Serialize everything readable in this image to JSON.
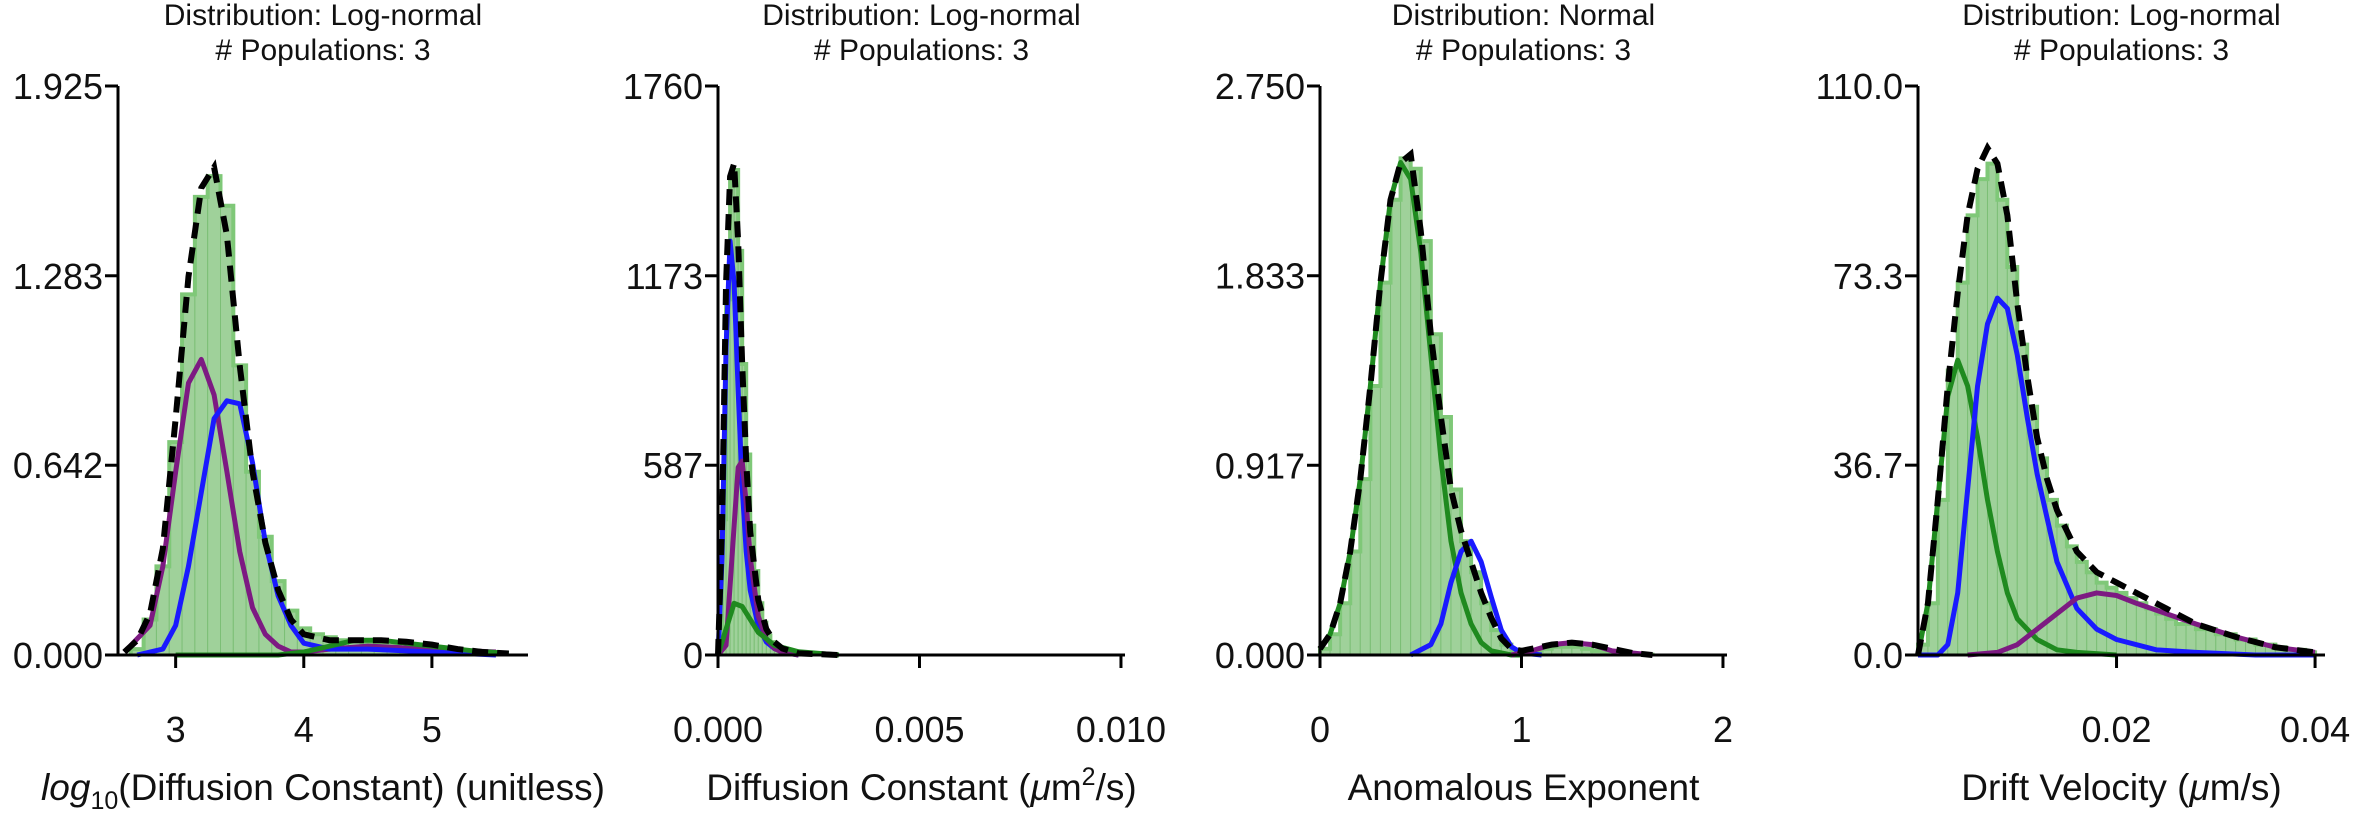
{
  "colors": {
    "histogram_fill": "#9fd19a",
    "histogram_edge": "#7fc878",
    "component_green": "#1f8a1f",
    "component_blue": "#1a1aff",
    "component_purple": "#7d1a82",
    "total_fit": "#000000"
  },
  "chart_data": [
    {
      "type": "bar",
      "title": "",
      "subtitle_lines": [
        "Distribution: Log-normal",
        "# Populations: 3"
      ],
      "xlabel_parts": [
        "log",
        "10",
        "(Diffusion Constant) (unitless)"
      ],
      "ylabel": "",
      "xlim": [
        2.55,
        5.75
      ],
      "ylim": [
        0,
        1.925
      ],
      "xticks": [
        3,
        4,
        5
      ],
      "xtick_labels": [
        "3",
        "4",
        "5"
      ],
      "yticks": [
        0,
        0.642,
        1.283,
        1.925
      ],
      "ytick_labels": [
        "0.000",
        "0.642",
        "1.283",
        "1.925"
      ],
      "grid": false,
      "bin_width": 0.1,
      "histogram": {
        "x": [
          2.7,
          2.8,
          2.9,
          3.0,
          3.1,
          3.2,
          3.3,
          3.4,
          3.5,
          3.6,
          3.7,
          3.8,
          3.9,
          4.0,
          4.1,
          4.2,
          4.3,
          4.4,
          4.5,
          4.6,
          4.7,
          4.8,
          4.9,
          5.0,
          5.1,
          5.2,
          5.3,
          5.4,
          5.5
        ],
        "values": [
          0.02,
          0.12,
          0.3,
          0.72,
          1.22,
          1.55,
          1.62,
          1.52,
          0.98,
          0.62,
          0.4,
          0.25,
          0.15,
          0.09,
          0.07,
          0.06,
          0.05,
          0.05,
          0.04,
          0.035,
          0.03,
          0.025,
          0.02,
          0.02,
          0.015,
          0.01,
          0.01,
          0.01,
          0.005
        ]
      },
      "series": [
        {
          "name": "",
          "color": "#7d1a82",
          "x": [
            2.6,
            2.8,
            2.9,
            3.0,
            3.1,
            3.2,
            3.3,
            3.4,
            3.5,
            3.6,
            3.7,
            3.8,
            3.9,
            4.0,
            4.2,
            4.5,
            5.0,
            5.5
          ],
          "values": [
            0.01,
            0.1,
            0.3,
            0.62,
            0.92,
            1.0,
            0.88,
            0.62,
            0.35,
            0.16,
            0.07,
            0.03,
            0.01,
            0.01,
            0.02,
            0.03,
            0.02,
            0.01
          ]
        },
        {
          "name": "",
          "color": "#1a1aff",
          "x": [
            2.7,
            2.9,
            3.0,
            3.1,
            3.2,
            3.3,
            3.4,
            3.5,
            3.6,
            3.7,
            3.8,
            3.9,
            4.0,
            4.2,
            4.5,
            5.0,
            5.5
          ],
          "values": [
            0.0,
            0.02,
            0.1,
            0.3,
            0.55,
            0.8,
            0.86,
            0.85,
            0.65,
            0.38,
            0.2,
            0.1,
            0.04,
            0.02,
            0.02,
            0.01,
            0.0
          ]
        },
        {
          "name": "",
          "color": "#1f8a1f",
          "x": [
            3.0,
            3.4,
            3.8,
            4.0,
            4.2,
            4.4,
            4.6,
            4.8,
            5.0,
            5.3,
            5.6
          ],
          "values": [
            0.0,
            0.0,
            0.0,
            0.01,
            0.03,
            0.05,
            0.05,
            0.04,
            0.03,
            0.015,
            0.005
          ]
        },
        {
          "name": "",
          "color": "#000000",
          "dashed": true,
          "x": [
            2.6,
            2.7,
            2.8,
            2.9,
            3.0,
            3.1,
            3.2,
            3.3,
            3.4,
            3.5,
            3.6,
            3.7,
            3.8,
            3.9,
            4.0,
            4.1,
            4.2,
            4.4,
            4.6,
            4.8,
            5.0,
            5.2,
            5.4,
            5.6
          ],
          "values": [
            0.01,
            0.05,
            0.14,
            0.36,
            0.8,
            1.28,
            1.58,
            1.65,
            1.42,
            0.98,
            0.62,
            0.38,
            0.22,
            0.12,
            0.07,
            0.06,
            0.05,
            0.05,
            0.05,
            0.045,
            0.035,
            0.02,
            0.01,
            0.005
          ]
        }
      ]
    },
    {
      "type": "bar",
      "title": "",
      "subtitle_lines": [
        "Distribution: Log-normal",
        "# Populations: 3"
      ],
      "xlabel_parts": [
        "Diffusion Constant (",
        "μ",
        "m",
        "2",
        "/s)"
      ],
      "ylabel": "",
      "xlim": [
        0,
        0.0101
      ],
      "ylim": [
        0,
        1760
      ],
      "xticks": [
        0,
        0.005,
        0.01
      ],
      "xtick_labels": [
        "0.000",
        "0.005",
        "0.010"
      ],
      "yticks": [
        0,
        587,
        1173,
        1760
      ],
      "ytick_labels": [
        "0",
        "587",
        "1173",
        "1760"
      ],
      "grid": false,
      "bin_width": 0.0001,
      "histogram": {
        "x": [
          5e-05,
          0.00015,
          0.00025,
          0.00035,
          0.00045,
          0.00055,
          0.00065,
          0.00075,
          0.00085,
          0.00095,
          0.00105,
          0.00115,
          0.00125,
          0.00135,
          0.00145,
          0.00155,
          0.00165,
          0.00175,
          0.00185,
          0.00195
        ],
        "values": [
          40,
          420,
          1100,
          1480,
          1500,
          1250,
          900,
          620,
          400,
          260,
          160,
          100,
          60,
          40,
          25,
          15,
          10,
          6,
          4,
          2
        ]
      },
      "series": [
        {
          "name": "",
          "color": "#1a1aff",
          "x": [
            0.0,
            0.0001,
            0.0002,
            0.0003,
            0.0004,
            0.0005,
            0.0006,
            0.0007,
            0.0008,
            0.001,
            0.0012,
            0.0014,
            0.0016,
            0.002
          ],
          "values": [
            0,
            300,
            950,
            1280,
            1150,
            820,
            520,
            320,
            200,
            90,
            40,
            20,
            10,
            0
          ]
        },
        {
          "name": "",
          "color": "#7d1a82",
          "x": [
            0.0,
            0.0002,
            0.0004,
            0.0005,
            0.0006,
            0.0007,
            0.0008,
            0.001,
            0.0012,
            0.0014,
            0.0016,
            0.002
          ],
          "values": [
            0,
            30,
            400,
            580,
            600,
            470,
            300,
            120,
            50,
            20,
            8,
            0
          ]
        },
        {
          "name": "",
          "color": "#1f8a1f",
          "x": [
            0.0,
            0.0002,
            0.0004,
            0.0006,
            0.0008,
            0.001,
            0.0014,
            0.002,
            0.003
          ],
          "values": [
            0,
            80,
            160,
            150,
            110,
            70,
            30,
            10,
            0
          ]
        },
        {
          "name": "",
          "color": "#000000",
          "dashed": true,
          "x": [
            0.0,
            0.0001,
            0.0002,
            0.0003,
            0.0004,
            0.0005,
            0.0006,
            0.0007,
            0.0008,
            0.001,
            0.0012,
            0.0014,
            0.0016,
            0.002,
            0.003
          ],
          "values": [
            0,
            400,
            1150,
            1480,
            1520,
            1280,
            900,
            600,
            380,
            170,
            80,
            40,
            20,
            5,
            0
          ]
        }
      ]
    },
    {
      "type": "bar",
      "title": "",
      "subtitle_lines": [
        "Distribution: Normal",
        "# Populations: 3"
      ],
      "xlabel_parts": [
        "Anomalous Exponent"
      ],
      "ylabel": "",
      "xlim": [
        0,
        2.02
      ],
      "ylim": [
        0,
        2.75
      ],
      "xticks": [
        0,
        1,
        2
      ],
      "xtick_labels": [
        "0",
        "1",
        "2"
      ],
      "yticks": [
        0,
        0.917,
        1.833,
        2.75
      ],
      "ytick_labels": [
        "0.000",
        "0.917",
        "1.833",
        "2.750"
      ],
      "grid": false,
      "bin_width": 0.05,
      "histogram": {
        "x": [
          0.025,
          0.075,
          0.125,
          0.175,
          0.225,
          0.275,
          0.325,
          0.375,
          0.425,
          0.475,
          0.525,
          0.575,
          0.625,
          0.675,
          0.725,
          0.775,
          0.825,
          0.875,
          0.925,
          0.975,
          1.025,
          1.075,
          1.125,
          1.175,
          1.225,
          1.275,
          1.325,
          1.375,
          1.425,
          1.475,
          1.525,
          1.575,
          1.625
        ],
        "values": [
          0.03,
          0.1,
          0.25,
          0.5,
          0.85,
          1.3,
          1.8,
          2.2,
          2.4,
          2.35,
          2.0,
          1.55,
          1.15,
          0.8,
          0.55,
          0.4,
          0.25,
          0.12,
          0.05,
          0.02,
          0.01,
          0.02,
          0.03,
          0.04,
          0.04,
          0.04,
          0.03,
          0.02,
          0.015,
          0.01,
          0.005,
          0.004,
          0.002
        ]
      },
      "series": [
        {
          "name": "",
          "color": "#1f8a1f",
          "x": [
            0.0,
            0.05,
            0.1,
            0.15,
            0.2,
            0.25,
            0.3,
            0.35,
            0.4,
            0.45,
            0.5,
            0.55,
            0.6,
            0.65,
            0.7,
            0.75,
            0.8,
            0.85,
            0.9,
            0.95,
            1.0
          ],
          "values": [
            0.03,
            0.1,
            0.25,
            0.5,
            0.85,
            1.3,
            1.8,
            2.2,
            2.38,
            2.3,
            1.95,
            1.45,
            0.95,
            0.55,
            0.3,
            0.15,
            0.06,
            0.02,
            0.01,
            0.0,
            0.0
          ]
        },
        {
          "name": "",
          "color": "#1a1aff",
          "x": [
            0.45,
            0.55,
            0.6,
            0.65,
            0.7,
            0.75,
            0.8,
            0.85,
            0.9,
            0.95,
            1.0,
            1.1
          ],
          "values": [
            0.0,
            0.05,
            0.15,
            0.35,
            0.5,
            0.55,
            0.45,
            0.28,
            0.12,
            0.04,
            0.01,
            0.0
          ]
        },
        {
          "name": "",
          "color": "#7d1a82",
          "x": [
            0.95,
            1.05,
            1.15,
            1.25,
            1.35,
            1.45,
            1.55,
            1.65
          ],
          "values": [
            0.0,
            0.02,
            0.05,
            0.06,
            0.05,
            0.02,
            0.01,
            0.0
          ]
        },
        {
          "name": "",
          "color": "#000000",
          "dashed": true,
          "x": [
            0.0,
            0.05,
            0.1,
            0.15,
            0.2,
            0.25,
            0.3,
            0.35,
            0.4,
            0.45,
            0.5,
            0.55,
            0.6,
            0.65,
            0.7,
            0.75,
            0.8,
            0.85,
            0.9,
            0.95,
            1.0,
            1.05,
            1.15,
            1.25,
            1.35,
            1.45,
            1.55,
            1.65
          ],
          "values": [
            0.03,
            0.1,
            0.25,
            0.5,
            0.85,
            1.3,
            1.8,
            2.2,
            2.38,
            2.42,
            2.05,
            1.55,
            1.15,
            0.8,
            0.6,
            0.45,
            0.3,
            0.18,
            0.08,
            0.03,
            0.02,
            0.03,
            0.05,
            0.06,
            0.05,
            0.03,
            0.01,
            0.0
          ]
        }
      ]
    },
    {
      "type": "bar",
      "title": "",
      "subtitle_lines": [
        "Distribution: Log-normal",
        "# Populations: 3"
      ],
      "xlabel_parts": [
        "Drift Velocity (",
        "μ",
        "m/s)"
      ],
      "ylabel": "",
      "xlim": [
        0,
        0.041
      ],
      "ylim": [
        0,
        110
      ],
      "xticks": [
        0.02,
        0.04
      ],
      "xtick_labels": [
        "0.02",
        "0.04"
      ],
      "yticks": [
        0,
        36.7,
        73.3,
        110
      ],
      "ytick_labels": [
        "0.0",
        "36.7",
        "73.3",
        "110.0"
      ],
      "grid": false,
      "bin_width": 0.001,
      "histogram": {
        "x": [
          0.0005,
          0.0015,
          0.0025,
          0.0035,
          0.0045,
          0.0055,
          0.0065,
          0.0075,
          0.0085,
          0.0095,
          0.0105,
          0.0115,
          0.0125,
          0.0135,
          0.0145,
          0.0155,
          0.0165,
          0.0175,
          0.0185,
          0.0195,
          0.0205,
          0.0215,
          0.0225,
          0.0235,
          0.0245,
          0.0255,
          0.0265,
          0.0275,
          0.0285,
          0.0295,
          0.0305,
          0.0315,
          0.0325,
          0.0335,
          0.0345,
          0.0355,
          0.0365,
          0.0375,
          0.0385,
          0.0395
        ],
        "values": [
          2,
          10,
          30,
          55,
          72,
          85,
          92,
          95,
          88,
          75,
          60,
          48,
          38,
          30,
          25,
          21,
          18,
          16,
          14,
          13,
          12,
          11,
          10,
          9,
          8,
          7,
          6,
          6,
          5,
          5,
          4,
          4,
          3,
          3,
          2,
          2,
          1.5,
          1,
          1,
          0.5
        ]
      },
      "series": [
        {
          "name": "",
          "color": "#1f8a1f",
          "x": [
            0.0,
            0.001,
            0.002,
            0.003,
            0.004,
            0.005,
            0.006,
            0.007,
            0.008,
            0.009,
            0.01,
            0.012,
            0.014,
            0.016,
            0.02
          ],
          "values": [
            0,
            10,
            30,
            50,
            57,
            52,
            42,
            30,
            20,
            12,
            7,
            3,
            1,
            0.5,
            0
          ]
        },
        {
          "name": "",
          "color": "#1a1aff",
          "x": [
            0.0,
            0.002,
            0.003,
            0.004,
            0.005,
            0.006,
            0.007,
            0.008,
            0.009,
            0.01,
            0.011,
            0.012,
            0.014,
            0.016,
            0.018,
            0.02,
            0.024,
            0.028,
            0.034,
            0.04
          ],
          "values": [
            0,
            0,
            2,
            12,
            32,
            52,
            64,
            69,
            67,
            58,
            46,
            35,
            18,
            9,
            5,
            3,
            1,
            0.5,
            0,
            0
          ]
        },
        {
          "name": "",
          "color": "#7d1a82",
          "x": [
            0.005,
            0.008,
            0.01,
            0.012,
            0.014,
            0.016,
            0.018,
            0.02,
            0.022,
            0.025,
            0.028,
            0.032,
            0.036,
            0.04
          ],
          "values": [
            0,
            0.5,
            2,
            5,
            8,
            11,
            12,
            11.5,
            10,
            8,
            6,
            3.5,
            1.5,
            0.5
          ]
        },
        {
          "name": "",
          "color": "#000000",
          "dashed": true,
          "x": [
            0.0,
            0.001,
            0.002,
            0.003,
            0.004,
            0.005,
            0.006,
            0.007,
            0.008,
            0.009,
            0.01,
            0.011,
            0.012,
            0.013,
            0.014,
            0.016,
            0.018,
            0.02,
            0.022,
            0.025,
            0.028,
            0.032,
            0.036,
            0.04
          ],
          "values": [
            0,
            10,
            30,
            52,
            70,
            85,
            94,
            98,
            95,
            85,
            68,
            54,
            42,
            34,
            28,
            20,
            16,
            14,
            12,
            9,
            6,
            3.5,
            1.5,
            0.5
          ]
        }
      ]
    }
  ]
}
